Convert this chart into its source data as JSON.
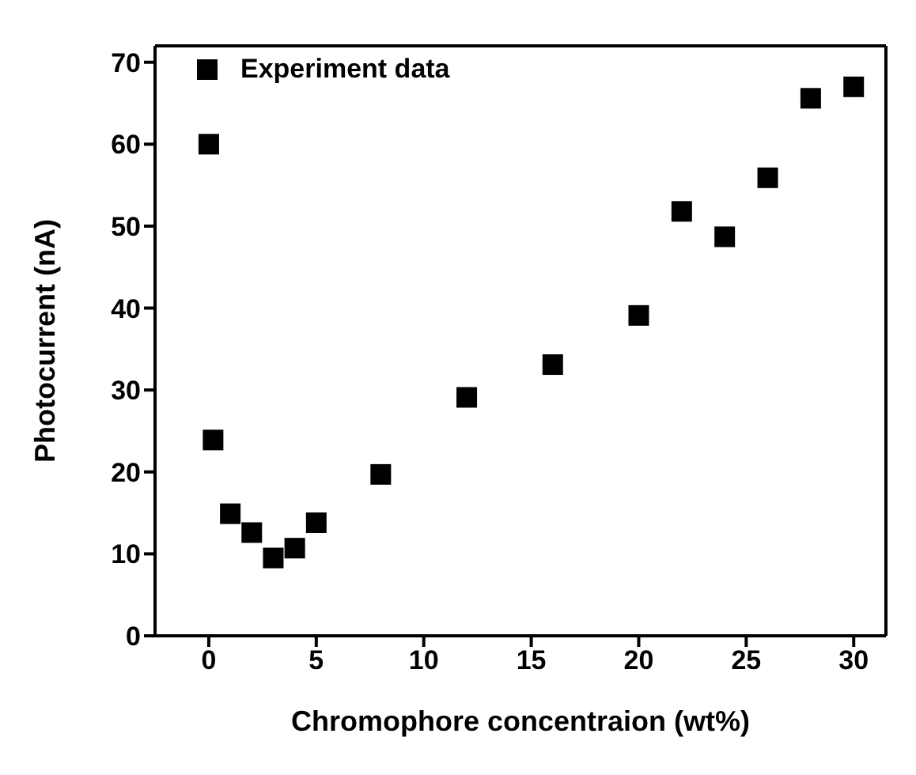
{
  "chart_data": {
    "type": "scatter",
    "xlabel": "Chromophore concentraion (wt%)",
    "ylabel": "Photocurrent (nA)",
    "x": [
      0,
      0.2,
      1,
      2,
      3,
      4,
      5,
      8,
      12,
      16,
      20,
      22,
      24,
      26,
      28,
      30
    ],
    "series": [
      {
        "name": "Experiment data",
        "color": "#000000",
        "values": [
          60,
          23.9,
          14.9,
          12.6,
          9.5,
          10.7,
          13.8,
          19.7,
          29.1,
          33.1,
          39.1,
          51.8,
          48.7,
          55.9,
          65.6,
          67.0
        ]
      }
    ],
    "xlim": [
      -2.5,
      31.5
    ],
    "xticks": [
      0,
      5,
      10,
      15,
      20,
      25,
      30
    ],
    "ylim": [
      0,
      72
    ],
    "yticks": [
      0,
      10,
      20,
      30,
      40,
      50,
      60,
      70
    ],
    "marker": "square",
    "legend": "top left",
    "grid": false
  }
}
